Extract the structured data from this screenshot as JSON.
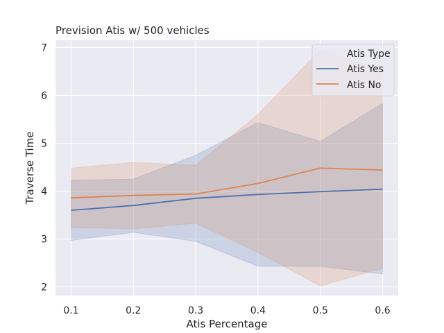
{
  "chart_data": {
    "type": "line",
    "title": "Prevision Atis w/ 500 vehicles",
    "xlabel": "Atis Percentage",
    "ylabel": "Traverse Time",
    "x": [
      0.1,
      0.2,
      0.3,
      0.4,
      0.5,
      0.6
    ],
    "xticks": [
      "0.1",
      "0.2",
      "0.3",
      "0.4",
      "0.5",
      "0.6"
    ],
    "yticks": [
      "2",
      "3",
      "4",
      "5",
      "6",
      "7"
    ],
    "xlim": [
      0.075,
      0.625
    ],
    "ylim": [
      1.82,
      7.15
    ],
    "grid": true,
    "legend": {
      "title": "Atis Type",
      "position": "top-right"
    },
    "series": [
      {
        "name": "Atis Yes",
        "color": "#4c72b0",
        "values": [
          3.6,
          3.7,
          3.85,
          3.93,
          3.99,
          4.04
        ],
        "ci_low": [
          2.97,
          3.14,
          2.95,
          2.43,
          2.43,
          2.27
        ],
        "ci_high": [
          4.23,
          4.25,
          4.75,
          5.43,
          5.04,
          5.83
        ]
      },
      {
        "name": "Atis No",
        "color": "#dd8452",
        "values": [
          3.86,
          3.91,
          3.94,
          4.16,
          4.48,
          4.44
        ],
        "ci_low": [
          3.24,
          3.21,
          3.33,
          2.72,
          2.02,
          2.39
        ],
        "ci_high": [
          4.48,
          4.6,
          4.54,
          5.6,
          6.95,
          6.51
        ]
      }
    ]
  }
}
